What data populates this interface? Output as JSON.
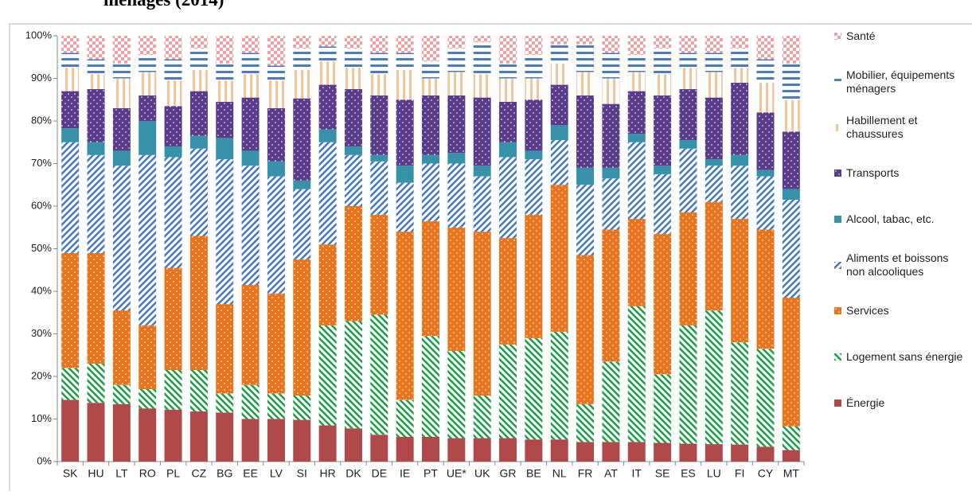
{
  "chart_data": {
    "type": "stacked-bar",
    "title": "ménages (2014)",
    "categories": [
      "SK",
      "HU",
      "LT",
      "RO",
      "PL",
      "CZ",
      "BG",
      "EE",
      "LV",
      "SI",
      "HR",
      "DK",
      "DE",
      "IE",
      "PT",
      "UE*",
      "UK",
      "GR",
      "BE",
      "NL",
      "FR",
      "AT",
      "IT",
      "SE",
      "ES",
      "LU",
      "FI",
      "CY",
      "MT"
    ],
    "series": [
      {
        "name": "Énergie",
        "color": "#b04a4a",
        "pattern": "solid",
        "values": [
          14.5,
          13.8,
          13.5,
          12.5,
          12.2,
          11.8,
          11.5,
          10,
          10,
          9.8,
          8.5,
          7.8,
          6.3,
          5.8,
          5.8,
          5.5,
          5.5,
          5.5,
          5.2,
          5.2,
          4.6,
          4.6,
          4.6,
          4.4,
          4.2,
          4.1,
          4,
          3.5,
          2.7
        ]
      },
      {
        "name": "Logement sans énergie",
        "color": "#1fa04a",
        "pattern": "diag-back",
        "values": [
          7.5,
          9.2,
          4.5,
          4.5,
          9.3,
          9.7,
          4.5,
          8,
          6,
          5.7,
          23.5,
          25.2,
          28.2,
          8.7,
          23.7,
          20.5,
          10,
          22,
          23.8,
          25.3,
          8.9,
          18.9,
          31.9,
          16.1,
          27.8,
          31.4,
          24,
          23,
          5.6
        ]
      },
      {
        "name": "Services",
        "color": "#e8741e",
        "pattern": "dots",
        "values": [
          27,
          26,
          17.5,
          15,
          24,
          31.5,
          21,
          23.5,
          23.5,
          32,
          19,
          27,
          23.5,
          39.5,
          27,
          29,
          38.5,
          25,
          29,
          34.5,
          35,
          31,
          20.5,
          33,
          26.5,
          25.5,
          29,
          28,
          30.2
        ]
      },
      {
        "name": "Aliments et boissons non alcooliques",
        "color": "#4a7cc4",
        "pattern": "diag-fwd",
        "values": [
          26,
          23,
          34,
          40,
          26,
          20.5,
          34,
          28,
          27.5,
          16.5,
          24,
          12,
          12.5,
          11.5,
          13.5,
          15,
          13,
          19,
          13,
          10.5,
          16.5,
          12,
          18,
          14,
          15,
          8.5,
          12.5,
          12.5,
          23
        ]
      },
      {
        "name": "Alcool, tabac, etc.",
        "color": "#3592a8",
        "pattern": "solid",
        "values": [
          3.3,
          3,
          3.5,
          8,
          2.5,
          3,
          5,
          3.5,
          3.5,
          2,
          3,
          2,
          1.5,
          4,
          2,
          2.5,
          2.5,
          3.5,
          2,
          3.5,
          4,
          2.5,
          2,
          2,
          2,
          1.5,
          2.5,
          1.5,
          2.5
        ]
      },
      {
        "name": "Transports",
        "color": "#5b3c8a",
        "pattern": "dots",
        "values": [
          8.7,
          12.5,
          10,
          6,
          9.5,
          10.5,
          8.5,
          12.5,
          12.5,
          19.3,
          10.5,
          13.5,
          14,
          15.5,
          14,
          13.5,
          16,
          9.5,
          12,
          9.5,
          17,
          15,
          10,
          16.5,
          12,
          14.5,
          17,
          13.5,
          13.5
        ]
      },
      {
        "name": "Habillement et chaussures",
        "color": "#f7c49a",
        "pattern": "vstripes",
        "values": [
          5.5,
          3.5,
          7,
          5.5,
          6,
          5,
          5,
          5.5,
          6.5,
          6.7,
          5.5,
          5,
          5,
          7,
          4,
          5.5,
          5.5,
          5.5,
          5,
          5,
          5.5,
          6,
          4.5,
          5,
          5,
          6,
          3.5,
          7,
          7.5
        ]
      },
      {
        "name": "Mobilier, équipements ménagers",
        "color": "#4a7cc4",
        "pattern": "hstripes",
        "values": [
          3.5,
          3.5,
          3.5,
          4,
          5,
          5,
          4,
          5,
          3.5,
          5,
          3.5,
          4.5,
          5,
          4,
          4,
          5.5,
          7.5,
          3.5,
          5.5,
          4.5,
          6.5,
          6,
          4,
          6,
          3.5,
          4.5,
          4.5,
          5.5,
          8.5
        ]
      },
      {
        "name": "Santé",
        "color": "#f0a0a0",
        "pattern": "checker",
        "values": [
          4,
          5.5,
          6.5,
          4.5,
          5.5,
          3,
          6.5,
          4,
          7,
          3,
          2.5,
          3,
          4,
          4,
          6,
          3,
          1.5,
          6.5,
          4.5,
          2,
          2,
          4,
          4.5,
          3,
          4,
          4,
          3,
          5.5,
          6.5
        ]
      }
    ],
    "ylim": [
      0,
      100
    ],
    "yticks": [
      {
        "value": 0,
        "label": "0%"
      },
      {
        "value": 10,
        "label": "10%"
      },
      {
        "value": 20,
        "label": "20%"
      },
      {
        "value": 30,
        "label": "30%"
      },
      {
        "value": 40,
        "label": "40%"
      },
      {
        "value": 50,
        "label": "50%"
      },
      {
        "value": 60,
        "label": "60%"
      },
      {
        "value": 70,
        "label": "70%"
      },
      {
        "value": 80,
        "label": "80%"
      },
      {
        "value": 90,
        "label": "90%"
      },
      {
        "value": 100,
        "label": "100%"
      }
    ],
    "legend": "right",
    "grid": false
  }
}
